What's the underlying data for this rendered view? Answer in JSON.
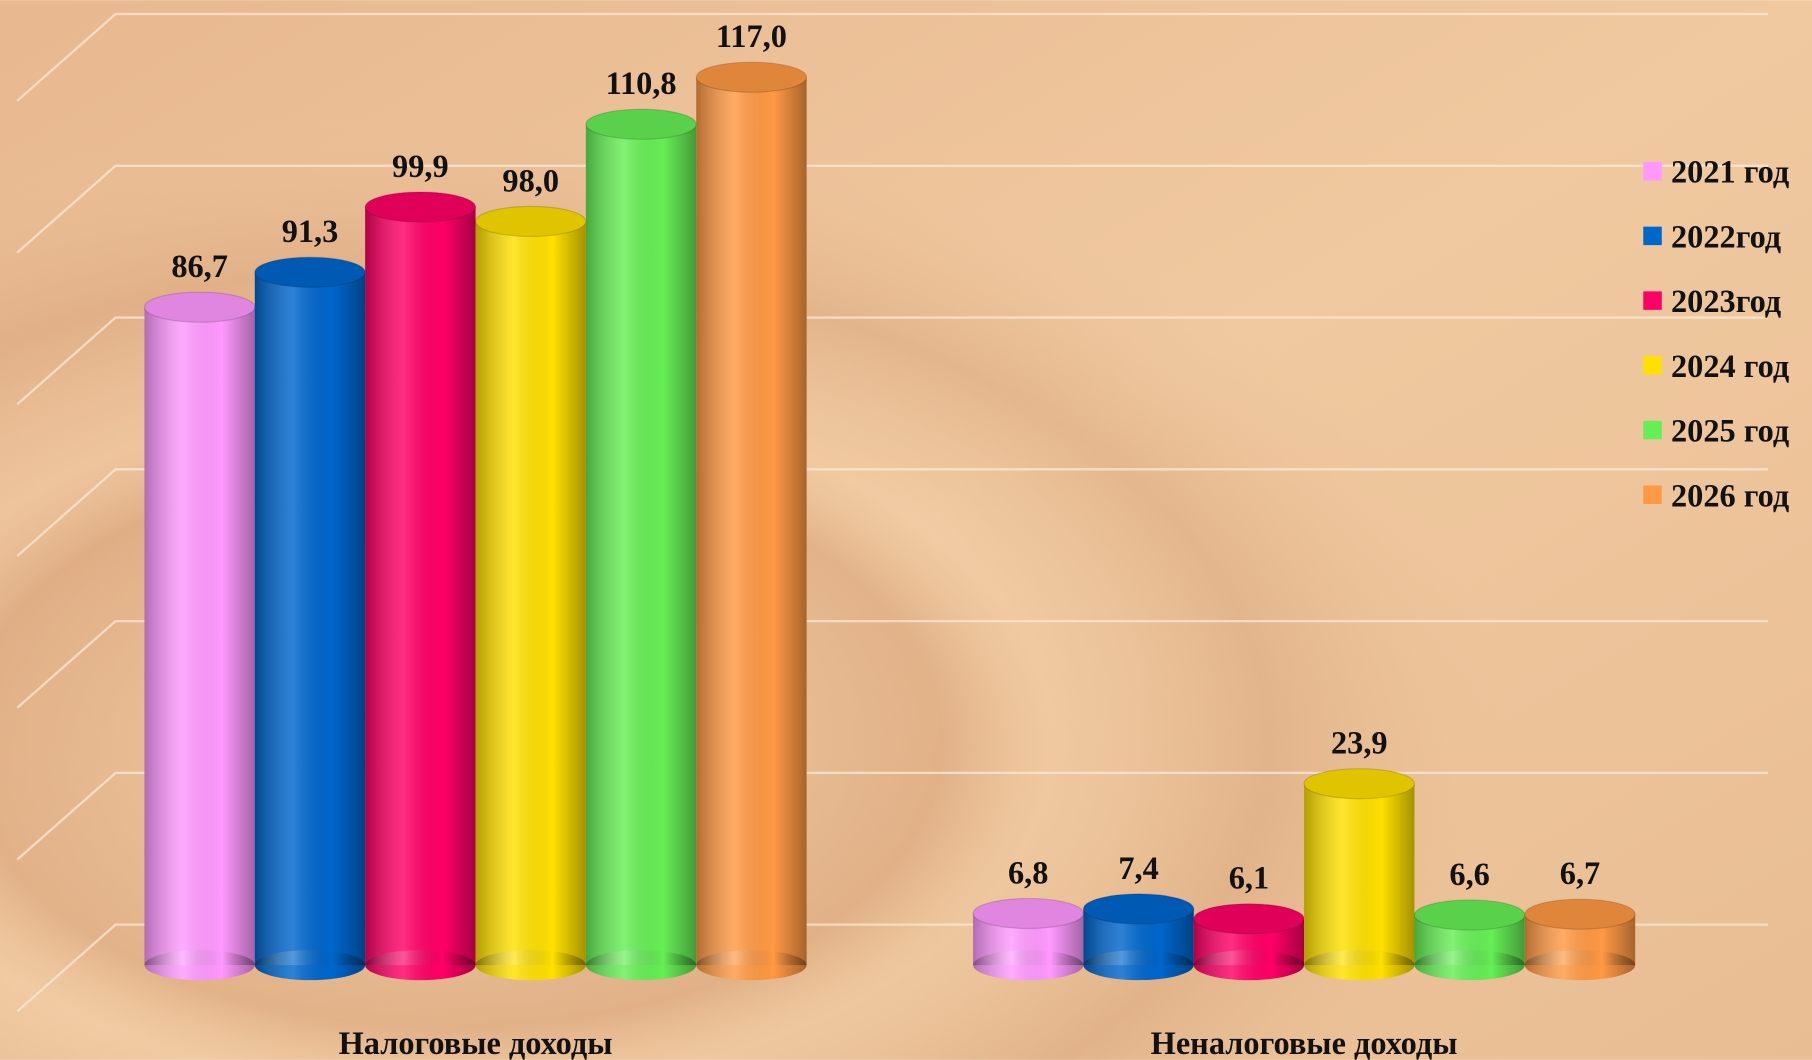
{
  "chart_data": {
    "type": "bar3d",
    "categories": [
      "Налоговые доходы",
      "Неналоговые доходы"
    ],
    "series": [
      {
        "name": "2021 год",
        "color": "#ff99ff",
        "values": [
          86.7,
          6.8
        ],
        "value_labels": [
          "86,7",
          "6,8"
        ]
      },
      {
        "name": "2022год",
        "color": "#0066cc",
        "values": [
          91.3,
          7.4
        ],
        "value_labels": [
          "91,3",
          "7,4"
        ]
      },
      {
        "name": "2023год",
        "color": "#ff0066",
        "values": [
          99.9,
          6.1
        ],
        "value_labels": [
          "99,9",
          "6,1"
        ]
      },
      {
        "name": "2024 год",
        "color": "#ffe000",
        "values": [
          98.0,
          23.9
        ],
        "value_labels": [
          "98,0",
          "23,9"
        ]
      },
      {
        "name": "2025 год",
        "color": "#66ee55",
        "values": [
          110.8,
          6.6
        ],
        "value_labels": [
          "110,8",
          "6,6"
        ]
      },
      {
        "name": "2026 год",
        "color": "#ff9944",
        "values": [
          117.0,
          6.7
        ],
        "value_labels": [
          "117,0",
          "6,7"
        ]
      }
    ],
    "ylim": [
      0,
      120
    ],
    "yticks": [
      0,
      20,
      40,
      60,
      80,
      100,
      120
    ],
    "grid": true,
    "legend": "right"
  }
}
